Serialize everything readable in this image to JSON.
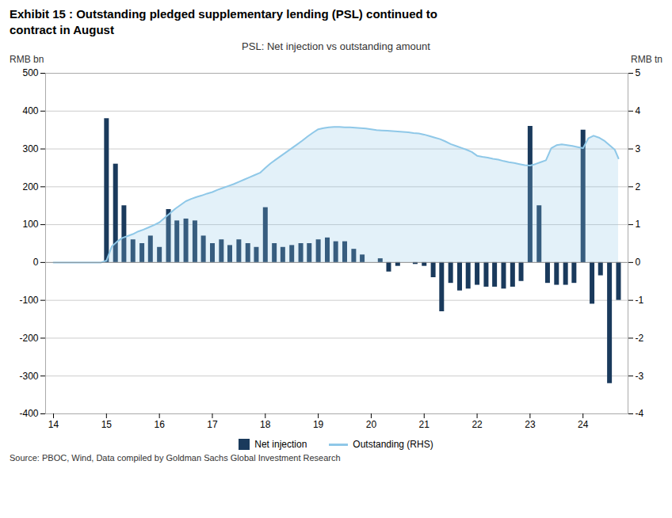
{
  "chart_data": {
    "type": "bar",
    "title": "Exhibit 15 : Outstanding pledged supplementary lending (PSL) continued to\ncontract in August",
    "subtitle": "PSL: Net injection vs outstanding amount",
    "caption": "Source: PBOC, Wind, Data compiled by Goldman Sachs Global Investment Research",
    "ylabel": "RMB bn",
    "y2label": "RMB tn",
    "xlim": [
      13.85,
      24.85
    ],
    "xticks": [
      14,
      15,
      16,
      17,
      18,
      19,
      20,
      21,
      22,
      23,
      24
    ],
    "ylim": [
      -400,
      500
    ],
    "yticks": [
      -400,
      -300,
      -200,
      -100,
      0,
      100,
      200,
      300,
      400,
      500
    ],
    "y2lim": [
      -4,
      5
    ],
    "y2ticks": [
      -4,
      -3,
      -2,
      -1,
      0,
      1,
      2,
      3,
      4,
      5
    ],
    "grid": true,
    "legend": "lower center",
    "series": [
      {
        "name": "Net injection",
        "type": "bar",
        "color": "#1a3a5c",
        "x": [
          14.0,
          14.25,
          14.5,
          14.75,
          15.0,
          15.17,
          15.33,
          15.5,
          15.67,
          15.83,
          16.0,
          16.17,
          16.33,
          16.5,
          16.67,
          16.83,
          17.0,
          17.17,
          17.33,
          17.5,
          17.67,
          17.83,
          18.0,
          18.17,
          18.33,
          18.5,
          18.67,
          18.83,
          19.0,
          19.17,
          19.33,
          19.5,
          19.67,
          19.83,
          20.0,
          20.17,
          20.33,
          20.5,
          20.67,
          20.83,
          21.0,
          21.17,
          21.33,
          21.5,
          21.67,
          21.83,
          22.0,
          22.17,
          22.33,
          22.5,
          22.67,
          22.83,
          23.0,
          23.17,
          23.33,
          23.5,
          23.67,
          23.83,
          24.0,
          24.17,
          24.33,
          24.5,
          24.67
        ],
        "values": [
          0,
          0,
          0,
          0,
          380,
          260,
          150,
          60,
          50,
          70,
          40,
          140,
          110,
          115,
          110,
          70,
          50,
          60,
          45,
          60,
          50,
          40,
          145,
          50,
          40,
          45,
          50,
          50,
          60,
          65,
          55,
          55,
          35,
          20,
          0,
          10,
          -25,
          -10,
          0,
          -5,
          -10,
          -40,
          -130,
          -55,
          -75,
          -70,
          -60,
          -65,
          -65,
          -70,
          -65,
          -50,
          360,
          150,
          -55,
          -60,
          -60,
          -55,
          350,
          -110,
          -35,
          -320,
          -100
        ]
      },
      {
        "name": "Outstanding (RHS)",
        "type": "area",
        "axis": "y2",
        "color": "#8fc8e8",
        "x": [
          14.0,
          14.1,
          14.2,
          14.3,
          14.4,
          14.5,
          14.6,
          14.7,
          14.8,
          14.9,
          15.0,
          15.1,
          15.2,
          15.3,
          15.4,
          15.5,
          15.6,
          15.7,
          15.8,
          15.9,
          16.0,
          16.1,
          16.2,
          16.3,
          16.4,
          16.5,
          16.6,
          16.7,
          16.8,
          16.9,
          17.0,
          17.1,
          17.2,
          17.3,
          17.4,
          17.5,
          17.6,
          17.7,
          17.8,
          17.9,
          18.0,
          18.1,
          18.2,
          18.3,
          18.4,
          18.5,
          18.6,
          18.7,
          18.8,
          18.9,
          19.0,
          19.1,
          19.2,
          19.3,
          19.4,
          19.5,
          19.6,
          19.7,
          19.8,
          19.9,
          20.0,
          20.1,
          20.2,
          20.3,
          20.4,
          20.5,
          20.6,
          20.7,
          20.8,
          20.9,
          21.0,
          21.1,
          21.2,
          21.3,
          21.4,
          21.5,
          21.6,
          21.7,
          21.8,
          21.9,
          22.0,
          22.1,
          22.2,
          22.3,
          22.4,
          22.5,
          22.6,
          22.7,
          22.8,
          22.9,
          23.0,
          23.1,
          23.2,
          23.3,
          23.4,
          23.5,
          23.6,
          23.7,
          23.8,
          23.9,
          24.0,
          24.1,
          24.2,
          24.3,
          24.4,
          24.5,
          24.6,
          24.67
        ],
        "values": [
          0.0,
          0.0,
          0.0,
          0.0,
          0.0,
          0.0,
          0.0,
          0.0,
          0.0,
          0.0,
          0.05,
          0.42,
          0.55,
          0.65,
          0.7,
          0.75,
          0.82,
          0.87,
          0.93,
          0.99,
          1.06,
          1.18,
          1.3,
          1.42,
          1.52,
          1.62,
          1.68,
          1.73,
          1.77,
          1.82,
          1.86,
          1.92,
          1.97,
          2.02,
          2.07,
          2.13,
          2.19,
          2.25,
          2.31,
          2.37,
          2.5,
          2.62,
          2.72,
          2.82,
          2.92,
          3.02,
          3.12,
          3.22,
          3.33,
          3.43,
          3.52,
          3.55,
          3.57,
          3.58,
          3.58,
          3.57,
          3.57,
          3.56,
          3.55,
          3.54,
          3.52,
          3.5,
          3.49,
          3.48,
          3.47,
          3.46,
          3.45,
          3.44,
          3.42,
          3.41,
          3.38,
          3.34,
          3.3,
          3.26,
          3.2,
          3.13,
          3.08,
          3.03,
          2.98,
          2.92,
          2.82,
          2.79,
          2.77,
          2.74,
          2.72,
          2.68,
          2.65,
          2.63,
          2.6,
          2.57,
          2.56,
          2.6,
          2.65,
          2.7,
          3.02,
          3.1,
          3.12,
          3.1,
          3.08,
          3.05,
          3.02,
          3.28,
          3.35,
          3.3,
          3.22,
          3.1,
          2.98,
          2.75
        ]
      }
    ]
  }
}
